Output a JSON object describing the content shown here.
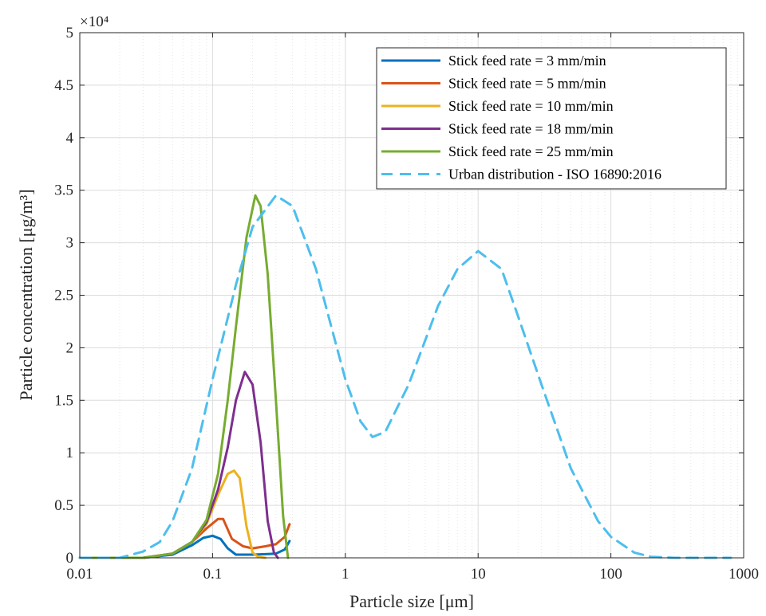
{
  "chart_data": {
    "type": "line",
    "title": "",
    "xlabel": "Particle size [μm]",
    "ylabel": "Particle concentration [μg/m³]",
    "xscale": "log",
    "xlim": [
      0.01,
      1000
    ],
    "ylim": [
      0,
      50000
    ],
    "y_multiplier_label": "×10⁴",
    "x_ticks": [
      0.01,
      0.1,
      1,
      10,
      100,
      1000
    ],
    "x_tick_labels": [
      "0.01",
      "0.1",
      "1",
      "10",
      "100",
      "1000"
    ],
    "y_ticks": [
      0,
      5000,
      10000,
      15000,
      20000,
      25000,
      30000,
      35000,
      40000,
      45000,
      50000
    ],
    "y_tick_labels": [
      "0",
      "0.5",
      "1",
      "1.5",
      "2",
      "2.5",
      "3",
      "3.5",
      "4",
      "4.5",
      "5"
    ],
    "grid": true,
    "legend_position": "top-right",
    "series": [
      {
        "name": "Stick feed rate = 3 mm/min",
        "color": "#0072BD",
        "dash": "solid",
        "x": [
          0.01,
          0.03,
          0.05,
          0.07,
          0.085,
          0.1,
          0.115,
          0.13,
          0.15,
          0.2,
          0.25,
          0.3,
          0.35,
          0.38
        ],
        "y": [
          0,
          0,
          300,
          1200,
          1900,
          2100,
          1800,
          900,
          300,
          300,
          350,
          400,
          800,
          1600
        ]
      },
      {
        "name": "Stick feed rate = 5 mm/min",
        "color": "#D95319",
        "dash": "solid",
        "x": [
          0.01,
          0.03,
          0.05,
          0.07,
          0.09,
          0.11,
          0.12,
          0.14,
          0.17,
          0.2,
          0.25,
          0.3,
          0.35,
          0.38
        ],
        "y": [
          0,
          0,
          400,
          1500,
          2800,
          3700,
          3700,
          1800,
          1100,
          900,
          1100,
          1300,
          2000,
          3200
        ]
      },
      {
        "name": "Stick feed rate = 10 mm/min",
        "color": "#EDB120",
        "dash": "solid",
        "x": [
          0.01,
          0.03,
          0.05,
          0.07,
          0.09,
          0.11,
          0.13,
          0.145,
          0.16,
          0.18,
          0.2,
          0.22,
          0.25
        ],
        "y": [
          0,
          0,
          400,
          1500,
          3200,
          6000,
          8000,
          8300,
          7600,
          3000,
          500,
          100,
          0
        ]
      },
      {
        "name": "Stick feed rate = 18 mm/min",
        "color": "#7E2F8E",
        "dash": "solid",
        "x": [
          0.01,
          0.03,
          0.05,
          0.07,
          0.09,
          0.11,
          0.13,
          0.15,
          0.175,
          0.2,
          0.23,
          0.26,
          0.29,
          0.31
        ],
        "y": [
          0,
          0,
          400,
          1500,
          3400,
          6500,
          10500,
          15000,
          17700,
          16500,
          11000,
          3500,
          500,
          0
        ]
      },
      {
        "name": "Stick feed rate = 25 mm/min",
        "color": "#77AC30",
        "dash": "solid",
        "x": [
          0.01,
          0.03,
          0.05,
          0.07,
          0.09,
          0.11,
          0.13,
          0.15,
          0.18,
          0.21,
          0.23,
          0.26,
          0.3,
          0.34,
          0.37
        ],
        "y": [
          0,
          0,
          400,
          1500,
          3600,
          8000,
          15000,
          22000,
          30500,
          34500,
          33500,
          27000,
          15000,
          4000,
          0
        ]
      },
      {
        "name": "Urban distribution - ISO 16890:2016",
        "color": "#4DBEEE",
        "dash": "dashed",
        "x": [
          0.01,
          0.02,
          0.03,
          0.04,
          0.05,
          0.07,
          0.1,
          0.15,
          0.2,
          0.3,
          0.4,
          0.6,
          1,
          1.3,
          1.6,
          2,
          3,
          5,
          7,
          10,
          15,
          20,
          30,
          50,
          80,
          100,
          150,
          200,
          300,
          500,
          800
        ],
        "y": [
          0,
          0,
          600,
          1500,
          3500,
          8500,
          17000,
          26000,
          31500,
          34500,
          33500,
          27500,
          17000,
          13000,
          11500,
          12000,
          16500,
          24000,
          27500,
          29200,
          27500,
          23000,
          16500,
          8500,
          3500,
          2000,
          500,
          100,
          0,
          0,
          0
        ]
      }
    ]
  }
}
